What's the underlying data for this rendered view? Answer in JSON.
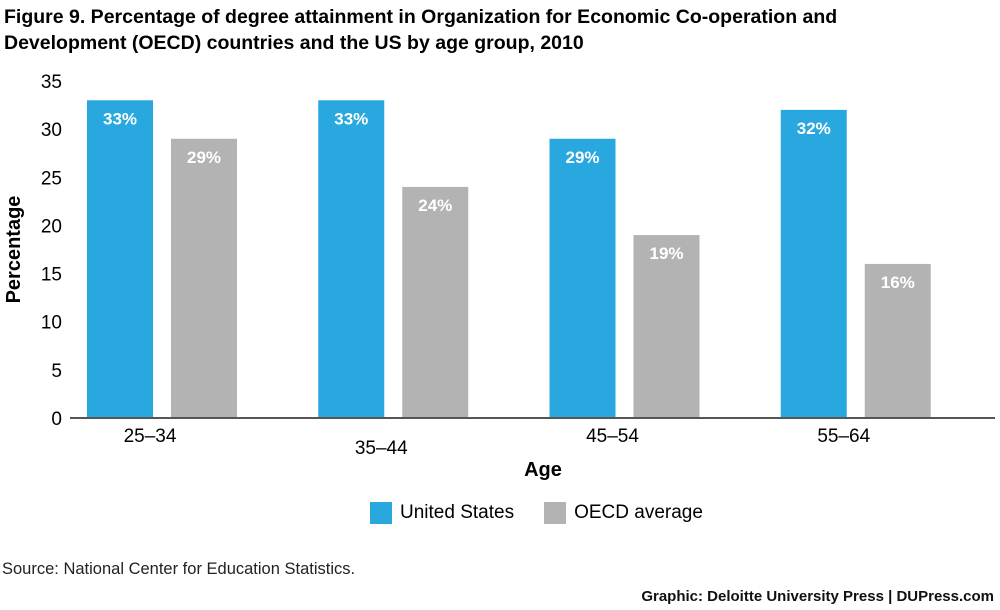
{
  "colors": {
    "us": "#29a8e0",
    "oecd": "#b3b3b3",
    "axis": "#555555"
  },
  "title": {
    "line1": "Figure 9. Percentage of degree attainment in Organization for Economic Co-operation and",
    "line2": "Development (OECD) countries and the US by age group, 2010"
  },
  "chart_data": {
    "type": "bar",
    "title": "Figure 9. Percentage of degree attainment in Organization for Economic Co-operation and Development (OECD) countries and the US by age group, 2010",
    "categories": [
      "25–34",
      "35–44",
      "45–54",
      "55–64"
    ],
    "series": [
      {
        "name": "United States",
        "values": [
          33,
          33,
          29,
          32
        ],
        "labels": [
          "33%",
          "33%",
          "29%",
          "32%"
        ]
      },
      {
        "name": "OECD average",
        "values": [
          29,
          24,
          19,
          16
        ],
        "labels": [
          "29%",
          "24%",
          "19%",
          "16%"
        ]
      }
    ],
    "xlabel": "Age",
    "ylabel": "Percentage",
    "ylim": [
      0,
      35
    ],
    "yticks": [
      0,
      5,
      10,
      15,
      20,
      25,
      30,
      35
    ],
    "grid": false,
    "legend": "bottom"
  },
  "source": "Source: National Center for Education Statistics.",
  "credit": "Graphic: Deloitte University Press  |  DUPress.com"
}
